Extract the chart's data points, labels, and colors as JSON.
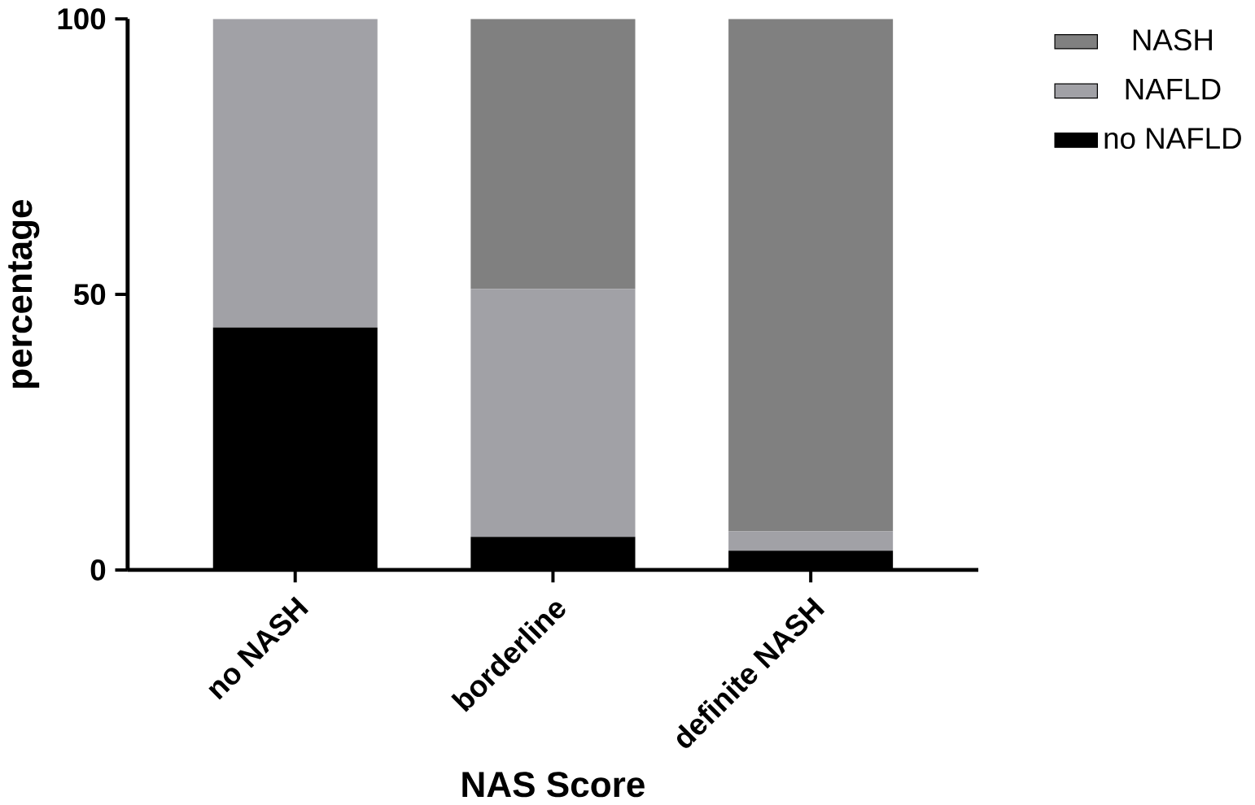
{
  "chart_data": {
    "type": "bar",
    "stacked": true,
    "xlabel": "NAS Score",
    "ylabel": "percentage",
    "categories": [
      "no NASH",
      "borderline",
      "definite NASH"
    ],
    "series": [
      {
        "name": "no  NAFLD",
        "color": "#000000",
        "values": [
          44,
          6,
          3.5
        ]
      },
      {
        "name": "NAFLD",
        "color": "#a1a1a6",
        "values": [
          56,
          45,
          3.5
        ]
      },
      {
        "name": "NASH",
        "color": "#808080",
        "values": [
          0,
          49,
          93
        ]
      }
    ],
    "ylim": [
      0,
      100
    ],
    "yticks": [
      0,
      50,
      100
    ],
    "legend": "top right"
  }
}
